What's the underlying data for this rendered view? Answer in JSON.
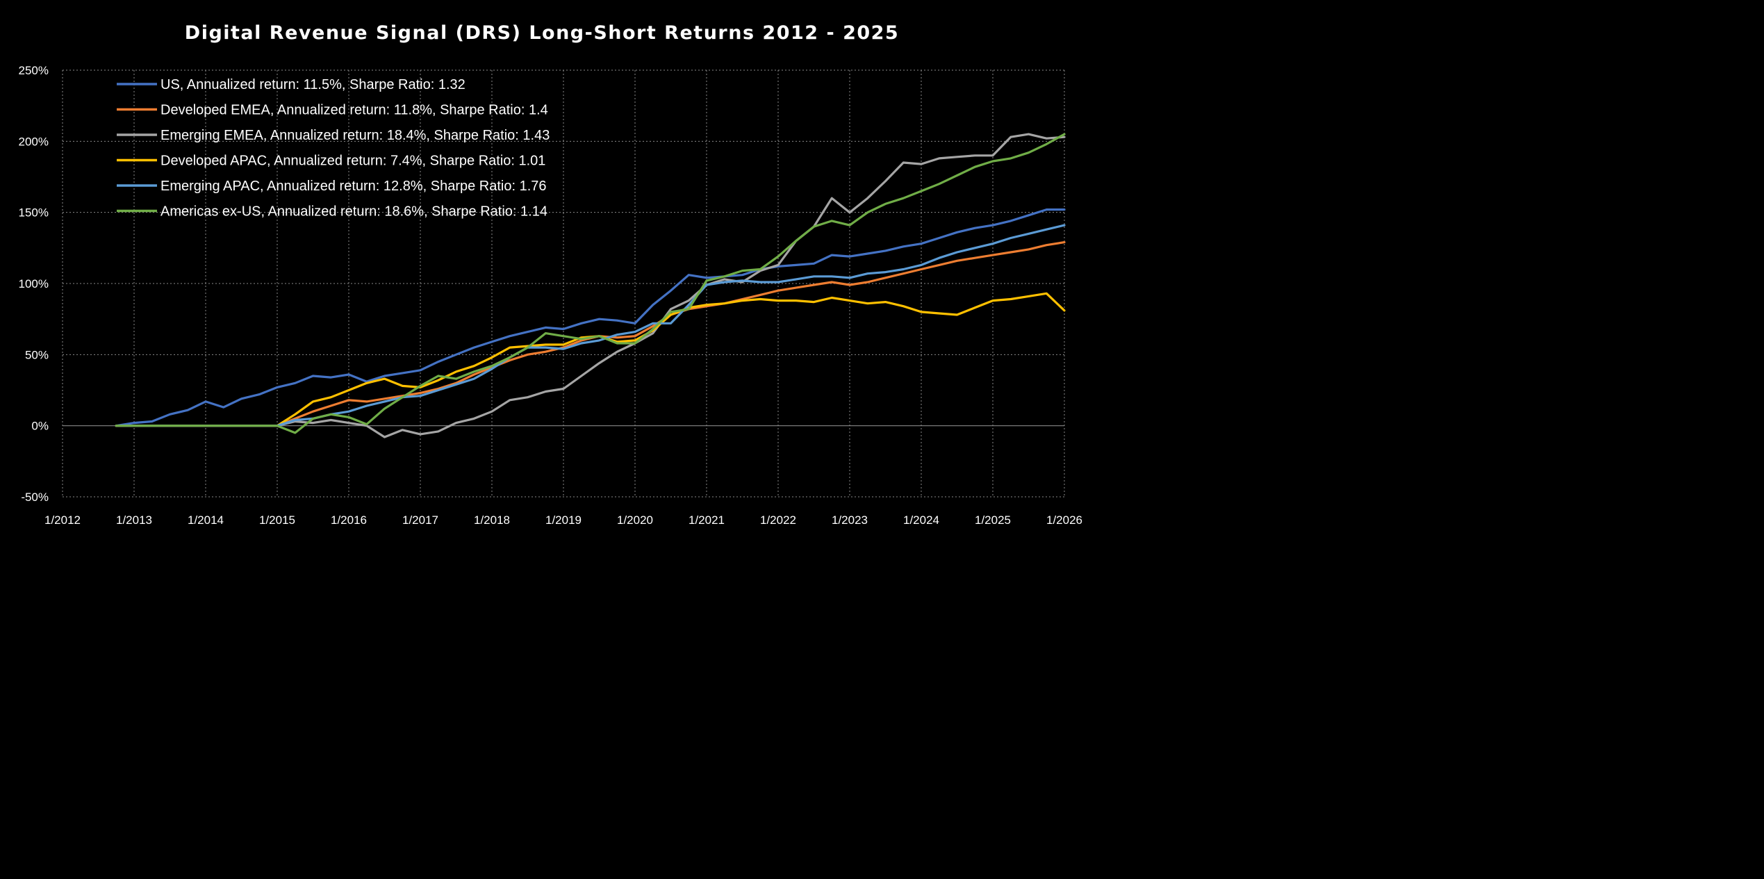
{
  "chart_data": {
    "type": "line",
    "title": "Digital Revenue Signal (DRS) Long-Short Returns 2012 - 2025",
    "xlabel": "",
    "ylabel": "",
    "xlim": [
      2012.0,
      2026.0
    ],
    "ylim": [
      -50,
      250
    ],
    "y_ticks": [
      -50,
      0,
      50,
      100,
      150,
      200,
      250
    ],
    "y_tick_labels": [
      "-50%",
      "0%",
      "50%",
      "100%",
      "150%",
      "200%",
      "250%"
    ],
    "x_ticks": [
      2012,
      2013,
      2014,
      2015,
      2016,
      2017,
      2018,
      2019,
      2020,
      2021,
      2022,
      2023,
      2024,
      2025,
      2026
    ],
    "x_tick_labels": [
      "1/2012",
      "1/2013",
      "1/2014",
      "1/2015",
      "1/2016",
      "1/2017",
      "1/2018",
      "1/2019",
      "1/2020",
      "1/2021",
      "1/2022",
      "1/2023",
      "1/2024",
      "1/2025",
      "1/2026"
    ],
    "grid": true,
    "legend_position": "top-left",
    "series": [
      {
        "name": "US, Annualized return: 11.5%, Sharpe Ratio: 1.32",
        "color": "#4472c4",
        "points": [
          [
            2012.75,
            0
          ],
          [
            2013.0,
            2
          ],
          [
            2013.25,
            3
          ],
          [
            2013.5,
            8
          ],
          [
            2013.75,
            11
          ],
          [
            2014.0,
            17
          ],
          [
            2014.25,
            13
          ],
          [
            2014.5,
            19
          ],
          [
            2014.75,
            22
          ],
          [
            2015.0,
            27
          ],
          [
            2015.25,
            30
          ],
          [
            2015.5,
            35
          ],
          [
            2015.75,
            34
          ],
          [
            2016.0,
            36
          ],
          [
            2016.25,
            31
          ],
          [
            2016.5,
            35
          ],
          [
            2016.75,
            37
          ],
          [
            2017.0,
            39
          ],
          [
            2017.25,
            45
          ],
          [
            2017.5,
            50
          ],
          [
            2017.75,
            55
          ],
          [
            2018.0,
            59
          ],
          [
            2018.25,
            63
          ],
          [
            2018.5,
            66
          ],
          [
            2018.75,
            69
          ],
          [
            2019.0,
            68
          ],
          [
            2019.25,
            72
          ],
          [
            2019.5,
            75
          ],
          [
            2019.75,
            74
          ],
          [
            2020.0,
            72
          ],
          [
            2020.25,
            85
          ],
          [
            2020.5,
            95
          ],
          [
            2020.75,
            106
          ],
          [
            2021.0,
            104
          ],
          [
            2021.25,
            105
          ],
          [
            2021.5,
            106
          ],
          [
            2021.75,
            110
          ],
          [
            2022.0,
            112
          ],
          [
            2022.25,
            113
          ],
          [
            2022.5,
            114
          ],
          [
            2022.75,
            120
          ],
          [
            2023.0,
            119
          ],
          [
            2023.25,
            121
          ],
          [
            2023.5,
            123
          ],
          [
            2023.75,
            126
          ],
          [
            2024.0,
            128
          ],
          [
            2024.25,
            132
          ],
          [
            2024.5,
            136
          ],
          [
            2024.75,
            139
          ],
          [
            2025.0,
            141
          ],
          [
            2025.25,
            144
          ],
          [
            2025.5,
            148
          ],
          [
            2025.75,
            152
          ],
          [
            2026.0,
            152
          ]
        ]
      },
      {
        "name": "Developed EMEA, Annualized return: 11.8%, Sharpe Ratio: 1.4",
        "color": "#ed7d31",
        "points": [
          [
            2012.75,
            0
          ],
          [
            2013.0,
            0
          ],
          [
            2014.0,
            0
          ],
          [
            2015.0,
            0
          ],
          [
            2015.25,
            5
          ],
          [
            2015.5,
            10
          ],
          [
            2015.75,
            14
          ],
          [
            2016.0,
            18
          ],
          [
            2016.25,
            17
          ],
          [
            2016.5,
            19
          ],
          [
            2016.75,
            21
          ],
          [
            2017.0,
            23
          ],
          [
            2017.25,
            26
          ],
          [
            2017.5,
            30
          ],
          [
            2017.75,
            36
          ],
          [
            2018.0,
            41
          ],
          [
            2018.25,
            46
          ],
          [
            2018.5,
            50
          ],
          [
            2018.75,
            52
          ],
          [
            2019.0,
            55
          ],
          [
            2019.25,
            60
          ],
          [
            2019.5,
            63
          ],
          [
            2019.75,
            62
          ],
          [
            2020.0,
            63
          ],
          [
            2020.25,
            70
          ],
          [
            2020.5,
            78
          ],
          [
            2020.75,
            82
          ],
          [
            2021.0,
            84
          ],
          [
            2021.25,
            86
          ],
          [
            2021.5,
            89
          ],
          [
            2021.75,
            92
          ],
          [
            2022.0,
            95
          ],
          [
            2022.25,
            97
          ],
          [
            2022.5,
            99
          ],
          [
            2022.75,
            101
          ],
          [
            2023.0,
            99
          ],
          [
            2023.25,
            101
          ],
          [
            2023.5,
            104
          ],
          [
            2023.75,
            107
          ],
          [
            2024.0,
            110
          ],
          [
            2024.25,
            113
          ],
          [
            2024.5,
            116
          ],
          [
            2024.75,
            118
          ],
          [
            2025.0,
            120
          ],
          [
            2025.25,
            122
          ],
          [
            2025.5,
            124
          ],
          [
            2025.75,
            127
          ],
          [
            2026.0,
            129
          ]
        ]
      },
      {
        "name": "Emerging EMEA, Annualized return: 18.4%, Sharpe Ratio: 1.43",
        "color": "#a5a5a5",
        "points": [
          [
            2012.75,
            0
          ],
          [
            2013.0,
            0
          ],
          [
            2014.0,
            0
          ],
          [
            2015.0,
            0
          ],
          [
            2015.25,
            3
          ],
          [
            2015.5,
            2
          ],
          [
            2015.75,
            4
          ],
          [
            2016.0,
            2
          ],
          [
            2016.25,
            0
          ],
          [
            2016.5,
            -8
          ],
          [
            2016.75,
            -3
          ],
          [
            2017.0,
            -6
          ],
          [
            2017.25,
            -4
          ],
          [
            2017.5,
            2
          ],
          [
            2017.75,
            5
          ],
          [
            2018.0,
            10
          ],
          [
            2018.25,
            18
          ],
          [
            2018.5,
            20
          ],
          [
            2018.75,
            24
          ],
          [
            2019.0,
            26
          ],
          [
            2019.25,
            35
          ],
          [
            2019.5,
            44
          ],
          [
            2019.75,
            52
          ],
          [
            2020.0,
            58
          ],
          [
            2020.25,
            65
          ],
          [
            2020.5,
            82
          ],
          [
            2020.75,
            88
          ],
          [
            2021.0,
            99
          ],
          [
            2021.25,
            103
          ],
          [
            2021.5,
            101
          ],
          [
            2021.75,
            109
          ],
          [
            2022.0,
            113
          ],
          [
            2022.25,
            130
          ],
          [
            2022.5,
            140
          ],
          [
            2022.75,
            160
          ],
          [
            2023.0,
            150
          ],
          [
            2023.25,
            160
          ],
          [
            2023.5,
            172
          ],
          [
            2023.75,
            185
          ],
          [
            2024.0,
            184
          ],
          [
            2024.25,
            188
          ],
          [
            2024.5,
            189
          ],
          [
            2024.75,
            190
          ],
          [
            2025.0,
            190
          ],
          [
            2025.25,
            203
          ],
          [
            2025.5,
            205
          ],
          [
            2025.75,
            202
          ],
          [
            2026.0,
            203
          ]
        ]
      },
      {
        "name": "Developed APAC, Annualized return: 7.4%, Sharpe Ratio: 1.01",
        "color": "#ffc000",
        "points": [
          [
            2012.75,
            0
          ],
          [
            2013.0,
            0
          ],
          [
            2014.0,
            0
          ],
          [
            2015.0,
            0
          ],
          [
            2015.25,
            8
          ],
          [
            2015.5,
            17
          ],
          [
            2015.75,
            20
          ],
          [
            2016.0,
            25
          ],
          [
            2016.25,
            30
          ],
          [
            2016.5,
            33
          ],
          [
            2016.75,
            28
          ],
          [
            2017.0,
            27
          ],
          [
            2017.25,
            32
          ],
          [
            2017.5,
            38
          ],
          [
            2017.75,
            42
          ],
          [
            2018.0,
            48
          ],
          [
            2018.25,
            55
          ],
          [
            2018.5,
            56
          ],
          [
            2018.75,
            57
          ],
          [
            2019.0,
            57
          ],
          [
            2019.25,
            62
          ],
          [
            2019.5,
            63
          ],
          [
            2019.75,
            59
          ],
          [
            2020.0,
            60
          ],
          [
            2020.25,
            67
          ],
          [
            2020.5,
            78
          ],
          [
            2020.75,
            83
          ],
          [
            2021.0,
            85
          ],
          [
            2021.25,
            86
          ],
          [
            2021.5,
            88
          ],
          [
            2021.75,
            89
          ],
          [
            2022.0,
            88
          ],
          [
            2022.25,
            88
          ],
          [
            2022.5,
            87
          ],
          [
            2022.75,
            90
          ],
          [
            2023.0,
            88
          ],
          [
            2023.25,
            86
          ],
          [
            2023.5,
            87
          ],
          [
            2023.75,
            84
          ],
          [
            2024.0,
            80
          ],
          [
            2024.25,
            79
          ],
          [
            2024.5,
            78
          ],
          [
            2024.75,
            83
          ],
          [
            2025.0,
            88
          ],
          [
            2025.25,
            89
          ],
          [
            2025.5,
            91
          ],
          [
            2025.75,
            93
          ],
          [
            2026.0,
            81
          ]
        ]
      },
      {
        "name": "Emerging APAC, Annualized return: 12.8%, Sharpe Ratio: 1.76",
        "color": "#5b9bd5",
        "points": [
          [
            2012.75,
            0
          ],
          [
            2013.0,
            0
          ],
          [
            2014.0,
            0
          ],
          [
            2015.0,
            0
          ],
          [
            2015.25,
            4
          ],
          [
            2015.5,
            5
          ],
          [
            2015.75,
            8
          ],
          [
            2016.0,
            10
          ],
          [
            2016.25,
            14
          ],
          [
            2016.5,
            17
          ],
          [
            2016.75,
            20
          ],
          [
            2017.0,
            21
          ],
          [
            2017.25,
            25
          ],
          [
            2017.5,
            29
          ],
          [
            2017.75,
            33
          ],
          [
            2018.0,
            40
          ],
          [
            2018.25,
            48
          ],
          [
            2018.5,
            55
          ],
          [
            2018.75,
            55
          ],
          [
            2019.0,
            54
          ],
          [
            2019.25,
            58
          ],
          [
            2019.5,
            60
          ],
          [
            2019.75,
            64
          ],
          [
            2020.0,
            66
          ],
          [
            2020.25,
            72
          ],
          [
            2020.5,
            72
          ],
          [
            2020.75,
            85
          ],
          [
            2021.0,
            99
          ],
          [
            2021.25,
            101
          ],
          [
            2021.5,
            102
          ],
          [
            2021.75,
            101
          ],
          [
            2022.0,
            101
          ],
          [
            2022.25,
            103
          ],
          [
            2022.5,
            105
          ],
          [
            2022.75,
            105
          ],
          [
            2023.0,
            104
          ],
          [
            2023.25,
            107
          ],
          [
            2023.5,
            108
          ],
          [
            2023.75,
            110
          ],
          [
            2024.0,
            113
          ],
          [
            2024.25,
            118
          ],
          [
            2024.5,
            122
          ],
          [
            2024.75,
            125
          ],
          [
            2025.0,
            128
          ],
          [
            2025.25,
            132
          ],
          [
            2025.5,
            135
          ],
          [
            2025.75,
            138
          ],
          [
            2026.0,
            141
          ]
        ]
      },
      {
        "name": "Americas ex-US, Annualized return: 18.6%, Sharpe Ratio: 1.14",
        "color": "#70ad47",
        "points": [
          [
            2012.75,
            0
          ],
          [
            2013.0,
            0
          ],
          [
            2014.0,
            0
          ],
          [
            2015.0,
            0
          ],
          [
            2015.25,
            -5
          ],
          [
            2015.5,
            5
          ],
          [
            2015.75,
            8
          ],
          [
            2016.0,
            6
          ],
          [
            2016.25,
            1
          ],
          [
            2016.5,
            12
          ],
          [
            2016.75,
            20
          ],
          [
            2017.0,
            28
          ],
          [
            2017.25,
            35
          ],
          [
            2017.5,
            33
          ],
          [
            2017.75,
            38
          ],
          [
            2018.0,
            42
          ],
          [
            2018.25,
            48
          ],
          [
            2018.5,
            55
          ],
          [
            2018.75,
            65
          ],
          [
            2019.0,
            63
          ],
          [
            2019.25,
            61
          ],
          [
            2019.5,
            63
          ],
          [
            2019.75,
            58
          ],
          [
            2020.0,
            58
          ],
          [
            2020.25,
            68
          ],
          [
            2020.5,
            80
          ],
          [
            2020.75,
            82
          ],
          [
            2021.0,
            102
          ],
          [
            2021.25,
            105
          ],
          [
            2021.5,
            109
          ],
          [
            2021.75,
            110
          ],
          [
            2022.0,
            119
          ],
          [
            2022.25,
            130
          ],
          [
            2022.5,
            140
          ],
          [
            2022.75,
            144
          ],
          [
            2023.0,
            141
          ],
          [
            2023.25,
            150
          ],
          [
            2023.5,
            156
          ],
          [
            2023.75,
            160
          ],
          [
            2024.0,
            165
          ],
          [
            2024.25,
            170
          ],
          [
            2024.5,
            176
          ],
          [
            2024.75,
            182
          ],
          [
            2025.0,
            186
          ],
          [
            2025.25,
            188
          ],
          [
            2025.5,
            192
          ],
          [
            2025.75,
            198
          ],
          [
            2026.0,
            205
          ]
        ]
      }
    ]
  }
}
